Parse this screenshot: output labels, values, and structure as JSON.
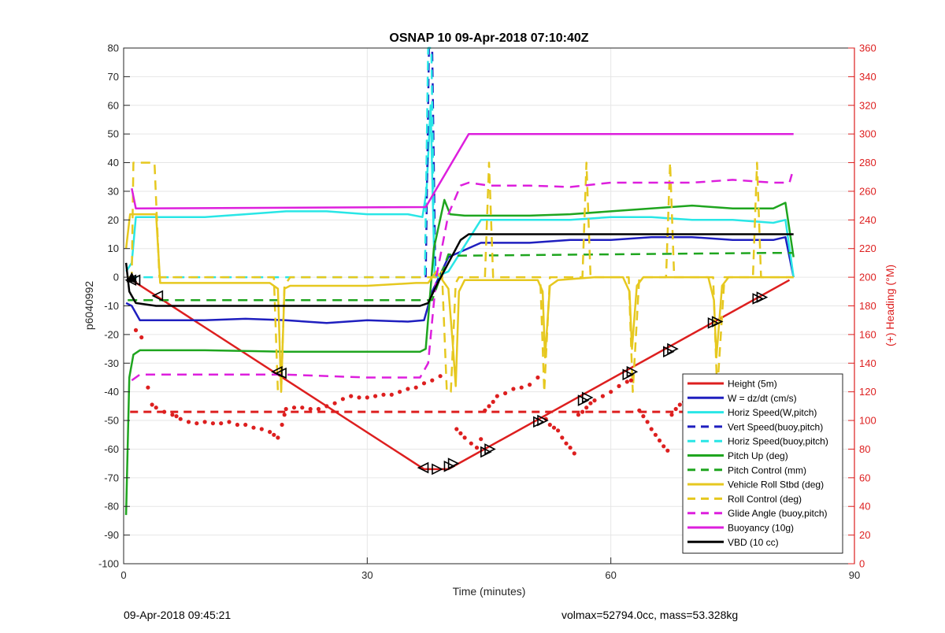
{
  "chart_data": {
    "type": "line",
    "title": "OSNAP 10 09-Apr-2018 07:10:40Z",
    "xlabel": "Time (minutes)",
    "ylabel_left": "p6040992",
    "ylabel_right": "(+) Heading (°M)",
    "xlim": [
      0,
      90
    ],
    "ylim_left": [
      -100,
      80
    ],
    "ylim_right": [
      0,
      360
    ],
    "x_ticks": [
      "0",
      "30",
      "60",
      "90"
    ],
    "y_ticks_left": [
      "80",
      "70",
      "60",
      "50",
      "40",
      "30",
      "20",
      "10",
      "0",
      "-10",
      "-20",
      "-30",
      "-40",
      "-50",
      "-60",
      "-70",
      "-80",
      "-90",
      "-100"
    ],
    "y_ticks_right": [
      "360",
      "340",
      "320",
      "300",
      "280",
      "260",
      "240",
      "220",
      "200",
      "180",
      "160",
      "140",
      "120",
      "100",
      "80",
      "60",
      "40",
      "20",
      "0"
    ],
    "grid": true,
    "legend_position": "bottom-right",
    "legend": [
      {
        "label": "Height (5m)",
        "color": "#dd1f1f",
        "style": "solid"
      },
      {
        "label": "W = dz/dt (cm/s)",
        "color": "#1f1fbf",
        "style": "solid"
      },
      {
        "label": "Horiz Speed(W,pitch)",
        "color": "#29e6e6",
        "style": "solid"
      },
      {
        "label": "Vert Speed(buoy,pitch)",
        "color": "#1f1fbf",
        "style": "dashed"
      },
      {
        "label": "Horiz Speed(buoy,pitch)",
        "color": "#29e6e6",
        "style": "dashed"
      },
      {
        "label": "Pitch Up (deg)",
        "color": "#1fa51f",
        "style": "solid"
      },
      {
        "label": "Pitch Control (mm)",
        "color": "#1fa51f",
        "style": "dashed"
      },
      {
        "label": "Vehicle Roll Stbd (deg)",
        "color": "#e6c81f",
        "style": "solid"
      },
      {
        "label": "Roll Control (deg)",
        "color": "#e6c81f",
        "style": "dashed"
      },
      {
        "label": "Glide Angle (buoy,pitch)",
        "color": "#dd1fdd",
        "style": "dashed"
      },
      {
        "label": "Buoyancy (10g)",
        "color": "#dd1fdd",
        "style": "solid"
      },
      {
        "label": "VBD (10 cc)",
        "color": "#000000",
        "style": "solid"
      }
    ],
    "series": [
      {
        "name": "Height (5m)",
        "color": "#dd1f1f",
        "style": "solid",
        "width": 2.5,
        "x": [
          1,
          37,
          40,
          82
        ],
        "y": [
          -1,
          -67,
          -67,
          -1
        ]
      },
      {
        "name": "W = dz/dt (cm/s)",
        "color": "#1f1fbf",
        "style": "solid",
        "width": 2.5,
        "x": [
          0.3,
          1,
          2,
          5,
          10,
          15,
          20,
          25,
          30,
          35,
          37,
          38,
          40,
          44,
          50,
          55,
          60,
          65,
          70,
          75,
          80,
          81.5,
          82.5
        ],
        "y": [
          -9,
          -10,
          -15,
          -15,
          -15,
          -14.5,
          -15,
          -16,
          -15,
          -15.5,
          -15,
          -5,
          7,
          12,
          12,
          13,
          13,
          14,
          14,
          13,
          13,
          14,
          0
        ]
      },
      {
        "name": "Horiz Speed(W,pitch)",
        "color": "#29e6e6",
        "style": "solid",
        "width": 2.5,
        "x": [
          0.3,
          1,
          1.5,
          5,
          10,
          15,
          20,
          25,
          30,
          35,
          36.8,
          37.3,
          37.8,
          38.3,
          40,
          44,
          50,
          55,
          60,
          65,
          70,
          75,
          80,
          81.5,
          82.5
        ],
        "y": [
          2,
          5,
          21,
          21,
          21,
          22,
          23,
          23,
          22,
          22,
          21,
          30,
          60,
          0,
          2,
          20,
          20,
          20,
          21,
          21,
          20,
          20,
          19,
          20,
          0
        ]
      },
      {
        "name": "Vert Speed(buoy,pitch)",
        "color": "#1f1fbf",
        "style": "dashed",
        "width": 2.5,
        "x": [
          37.2,
          37.6,
          38,
          38.4
        ],
        "y": [
          0,
          80,
          80,
          0
        ]
      },
      {
        "name": "Horiz Speed(buoy,pitch)",
        "color": "#29e6e6",
        "style": "dashed",
        "width": 2.5,
        "x": [
          0.5,
          36.8,
          37.1,
          37.5,
          37.9,
          38.3,
          38.6,
          39
        ],
        "y": [
          0,
          0,
          0,
          80,
          80,
          0,
          0,
          0
        ]
      },
      {
        "name": "Pitch Up (deg)",
        "color": "#1fa51f",
        "style": "solid",
        "width": 2.5,
        "x": [
          0.3,
          0.7,
          1.2,
          2,
          10,
          20,
          30,
          36.5,
          37.2,
          38.2,
          39.5,
          40.2,
          42,
          50,
          55,
          60,
          65,
          70,
          75,
          80,
          81.5,
          82.5
        ],
        "y": [
          -83,
          -35,
          -27,
          -25.5,
          -25.5,
          -26,
          -26,
          -26,
          -25,
          10,
          27,
          22,
          21.5,
          21.5,
          22,
          23,
          24,
          25,
          24,
          24,
          26,
          7
        ]
      },
      {
        "name": "Pitch Control (mm)",
        "color": "#1fa51f",
        "style": "dashed",
        "width": 2.5,
        "x": [
          0.5,
          1,
          37,
          38,
          40,
          41,
          80,
          82.5
        ],
        "y": [
          -8,
          -8,
          -8,
          -8,
          8,
          7.5,
          8.5,
          8.5
        ]
      },
      {
        "name": "Vehicle Roll Stbd (deg)",
        "color": "#e6c81f",
        "style": "solid",
        "width": 2.5,
        "x": [
          0.3,
          0.8,
          1.2,
          4,
          4.5,
          18,
          19,
          19.4,
          19.8,
          20.5,
          25,
          30,
          36,
          37.5,
          38.5,
          40,
          40.5,
          40.9,
          41.3,
          42,
          45,
          51,
          51.6,
          51.9,
          52.5,
          53.5,
          58,
          61.5,
          62.3,
          62.6,
          63.2,
          64,
          68,
          72,
          72.7,
          73,
          73.7,
          74.5,
          79,
          82.5
        ],
        "y": [
          10,
          22,
          22,
          22,
          -2,
          -2,
          -4,
          -40,
          -4,
          -3,
          -3,
          -3,
          -2,
          -2,
          2,
          -4,
          -22,
          -38,
          -5,
          -1,
          -1,
          -1,
          -5,
          -28,
          -3,
          -1,
          0,
          0,
          -5,
          -25,
          -3,
          0,
          0,
          0,
          -8,
          -28,
          -3,
          0,
          0,
          0
        ]
      },
      {
        "name": "Roll Control (deg)",
        "color": "#e6c81f",
        "style": "dashed",
        "width": 2.5,
        "x": [
          0.5,
          1,
          1.2,
          3.8,
          4.1,
          4.4,
          18.5,
          19,
          19.4,
          19.8,
          20.5,
          37,
          38.5,
          39.2,
          39.8,
          40.3,
          40.9,
          41.3,
          42,
          44.5,
          45,
          45.5,
          51.3,
          51.8,
          52.5,
          56.5,
          57,
          57.5,
          62.2,
          62.7,
          63.5,
          66.8,
          67.3,
          67.8,
          72.6,
          73.1,
          74,
          77.5,
          78,
          78.5,
          82.5
        ],
        "y": [
          0,
          0,
          40,
          40,
          20,
          0,
          0,
          -40,
          -40,
          -3,
          0,
          0,
          0,
          2,
          -40,
          -40,
          -2,
          0,
          0,
          0,
          40,
          0,
          0,
          -40,
          0,
          0,
          40,
          0,
          0,
          -40,
          0,
          0,
          40,
          0,
          0,
          -40,
          0,
          0,
          40,
          0,
          0
        ]
      },
      {
        "name": "Glide Angle (buoy,pitch)",
        "color": "#dd1fdd",
        "style": "dashed",
        "width": 2.5,
        "x": [
          1,
          2,
          4,
          10,
          20,
          30,
          36.5,
          37.5,
          38.5,
          40,
          41.5,
          42.5,
          45,
          50,
          55,
          60,
          65,
          70,
          75,
          80,
          82,
          82.3
        ],
        "y": [
          -36,
          -34,
          -34,
          -34,
          -34,
          -35,
          -35,
          -30,
          0,
          22,
          32,
          33,
          32,
          32,
          31.5,
          33,
          33,
          33,
          34,
          33,
          33,
          36
        ]
      },
      {
        "name": "Buoyancy (10g)",
        "color": "#dd1fdd",
        "style": "solid",
        "width": 2.5,
        "x": [
          1,
          1.5,
          37.2,
          42.5,
          82.5
        ],
        "y": [
          31,
          24,
          24.5,
          50,
          50
        ]
      },
      {
        "name": "VBD (10 cc)",
        "color": "#000000",
        "style": "solid",
        "width": 2.5,
        "x": [
          0.3,
          0.7,
          1.5,
          4,
          10,
          20,
          30,
          36.5,
          37.5,
          38.5,
          40,
          41.5,
          42.5,
          50,
          60,
          70,
          80,
          82.5
        ],
        "y": [
          5,
          -5,
          -9,
          -10,
          -10,
          -10,
          -10,
          -10,
          -9,
          -3,
          5,
          13,
          15,
          15,
          15,
          15,
          15,
          15
        ]
      }
    ],
    "heading_points_axis": "right",
    "heading_points_color": "#dd1f1f",
    "heading_points": [
      [
        1.5,
        163
      ],
      [
        2.2,
        158
      ],
      [
        3,
        123
      ],
      [
        3.5,
        111
      ],
      [
        4,
        109
      ],
      [
        5,
        106
      ],
      [
        6,
        104
      ],
      [
        6.5,
        103
      ],
      [
        7,
        101
      ],
      [
        8,
        99
      ],
      [
        9,
        98
      ],
      [
        10,
        99
      ],
      [
        11,
        98
      ],
      [
        12,
        98
      ],
      [
        13,
        99
      ],
      [
        14,
        97
      ],
      [
        15,
        97
      ],
      [
        16,
        95
      ],
      [
        17,
        94
      ],
      [
        18,
        92
      ],
      [
        18.5,
        90
      ],
      [
        19,
        88
      ],
      [
        19.5,
        97
      ],
      [
        19.8,
        104
      ],
      [
        20,
        108
      ],
      [
        21,
        109
      ],
      [
        22,
        109
      ],
      [
        23,
        108
      ],
      [
        24,
        108
      ],
      [
        25,
        110
      ],
      [
        26,
        112
      ],
      [
        27,
        115
      ],
      [
        28,
        117
      ],
      [
        29,
        116
      ],
      [
        30,
        116
      ],
      [
        31,
        117
      ],
      [
        32,
        118
      ],
      [
        33,
        118
      ],
      [
        34,
        120
      ],
      [
        35,
        122
      ],
      [
        36,
        123
      ],
      [
        37,
        126
      ],
      [
        38,
        128
      ],
      [
        39,
        131
      ],
      [
        41,
        94
      ],
      [
        41.5,
        91
      ],
      [
        42,
        88
      ],
      [
        42.8,
        84
      ],
      [
        43.5,
        81
      ],
      [
        44,
        87
      ],
      [
        44.5,
        107
      ],
      [
        45,
        110
      ],
      [
        45.5,
        113
      ],
      [
        46,
        117
      ],
      [
        47,
        119
      ],
      [
        48,
        122
      ],
      [
        49,
        123
      ],
      [
        50,
        125
      ],
      [
        51,
        130
      ],
      [
        52,
        101
      ],
      [
        52.5,
        97
      ],
      [
        53,
        95
      ],
      [
        53.5,
        93
      ],
      [
        54,
        88
      ],
      [
        54.5,
        84
      ],
      [
        55,
        81
      ],
      [
        55.5,
        77
      ],
      [
        56,
        104
      ],
      [
        56.5,
        106
      ],
      [
        57,
        109
      ],
      [
        57.5,
        112
      ],
      [
        58,
        114
      ],
      [
        59,
        117
      ],
      [
        60,
        120
      ],
      [
        61,
        124
      ],
      [
        62,
        127
      ],
      [
        62.5,
        128
      ],
      [
        63.5,
        107
      ],
      [
        64,
        103
      ],
      [
        64.5,
        99
      ],
      [
        65,
        94
      ],
      [
        65.5,
        90
      ],
      [
        66,
        86
      ],
      [
        66.5,
        82
      ],
      [
        67,
        79
      ],
      [
        67.5,
        104
      ],
      [
        68,
        108
      ],
      [
        68.5,
        111
      ],
      [
        69,
        113
      ],
      [
        70,
        116
      ],
      [
        71,
        118
      ],
      [
        72,
        121
      ],
      [
        73.5,
        113
      ],
      [
        74,
        107
      ],
      [
        74.5,
        102
      ],
      [
        75,
        98
      ],
      [
        75.5,
        94
      ],
      [
        76,
        90
      ],
      [
        76.5,
        86
      ],
      [
        77,
        82
      ],
      [
        77.5,
        104
      ],
      [
        78,
        107
      ],
      [
        78.5,
        111
      ],
      [
        79,
        114
      ],
      [
        80,
        117
      ],
      [
        81,
        120
      ],
      [
        82,
        124
      ]
    ],
    "pitch_control_ref": {
      "y": -47,
      "color": "#dd1f1f",
      "style": "dashed"
    },
    "markers": [
      [
        1,
        -1
      ],
      [
        1.5,
        -1
      ],
      [
        4.3,
        -6.5
      ],
      [
        19,
        -33
      ],
      [
        19.5,
        -33.5
      ],
      [
        37,
        -66.5
      ],
      [
        38.5,
        -67
      ],
      [
        40,
        -66
      ],
      [
        40.5,
        -65
      ],
      [
        44.5,
        -61
      ],
      [
        45,
        -60
      ],
      [
        51,
        -50.5
      ],
      [
        51.5,
        -50
      ],
      [
        56.5,
        -43
      ],
      [
        57,
        -42
      ],
      [
        62,
        -34
      ],
      [
        62.5,
        -33
      ],
      [
        67,
        -26
      ],
      [
        67.5,
        -25
      ],
      [
        72.5,
        -16
      ],
      [
        73,
        -15.5
      ],
      [
        78,
        -7.5
      ],
      [
        78.5,
        -7
      ]
    ]
  },
  "footer": {
    "left_text": "09-Apr-2018 09:45:21",
    "right_text": "volmax=52794.0cc, mass=53.328kg"
  }
}
